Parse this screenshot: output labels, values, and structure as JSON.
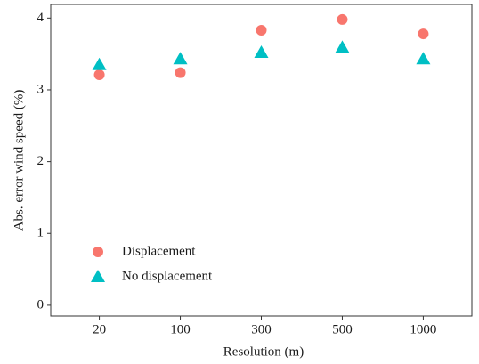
{
  "chart_data": {
    "type": "scatter",
    "x_label": "Resolution (m)",
    "y_label": "Abs. error wind speed (%)",
    "categories": [
      "20",
      "100",
      "300",
      "500",
      "1000"
    ],
    "series": [
      {
        "name": "Displacement",
        "color": "#F8766D",
        "marker": "circle",
        "values": [
          3.21,
          3.24,
          3.83,
          3.98,
          3.78
        ]
      },
      {
        "name": "No displacement",
        "color": "#00BFC4",
        "marker": "triangle",
        "values": [
          3.35,
          3.43,
          3.52,
          3.59,
          3.43
        ]
      }
    ],
    "ylim": [
      -0.15,
      4.19
    ],
    "yticks": [
      0,
      1,
      2,
      3,
      4
    ],
    "grid": false,
    "legend": "bottom-left"
  }
}
